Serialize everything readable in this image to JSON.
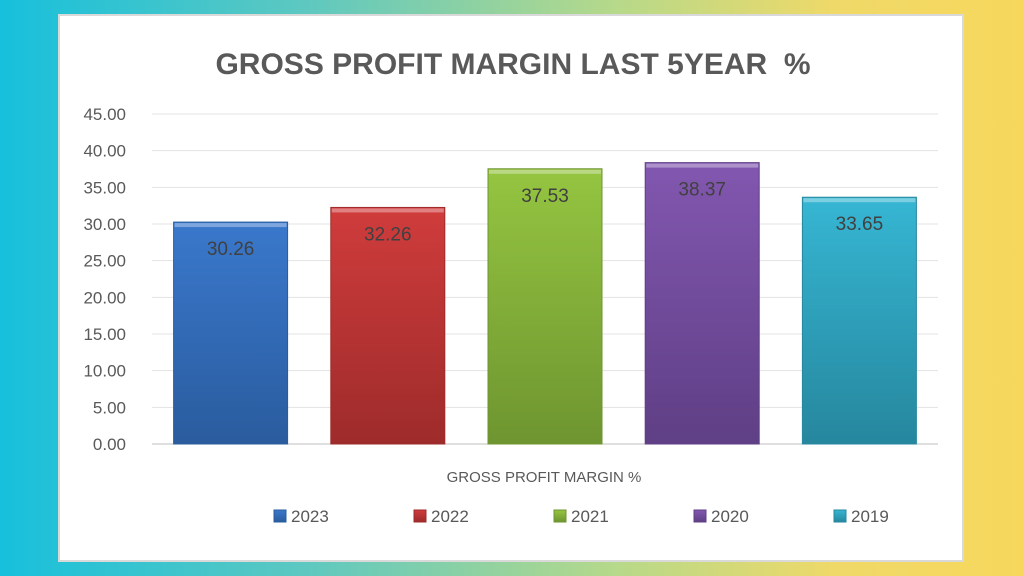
{
  "chart_data": {
    "type": "bar",
    "title": "GROSS PROFIT MARGIN LAST 5YEAR  %",
    "xlabel": "GROSS PROFIT MARGIN %",
    "ylabel": "",
    "ylim": [
      0,
      45
    ],
    "yticks": [
      "0.00",
      "5.00",
      "10.00",
      "15.00",
      "20.00",
      "25.00",
      "30.00",
      "35.00",
      "40.00",
      "45.00"
    ],
    "grid": true,
    "legend_position": "bottom",
    "series": [
      {
        "name": "2023",
        "value": 30.26,
        "label": "30.26",
        "color": "#3a78cc",
        "dark": "#2a5c9e"
      },
      {
        "name": "2022",
        "value": 32.26,
        "label": "32.26",
        "color": "#d03c3c",
        "dark": "#9e2b2b"
      },
      {
        "name": "2021",
        "value": 37.53,
        "label": "37.53",
        "color": "#95c541",
        "dark": "#6e9530"
      },
      {
        "name": "2020",
        "value": 38.37,
        "label": "38.37",
        "color": "#8257b0",
        "dark": "#5f3f85"
      },
      {
        "name": "2019",
        "value": 33.65,
        "label": "33.65",
        "color": "#36b6d3",
        "dark": "#26879e"
      }
    ]
  }
}
